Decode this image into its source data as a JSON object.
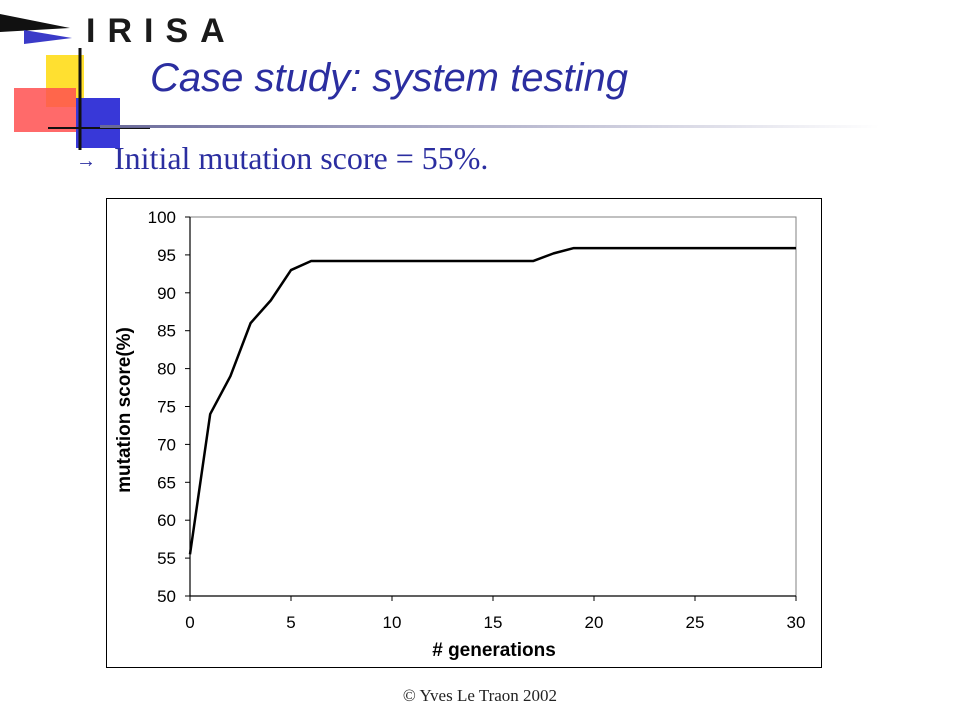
{
  "header": {
    "logo_text": "IRISA",
    "title": "Case study: system testing"
  },
  "bullet": {
    "icon": "arrow-right-icon",
    "text": "Initial mutation score = 55%."
  },
  "chart_data": {
    "type": "line",
    "xlabel": "# generations",
    "ylabel": "mutation score(%)",
    "xlim": [
      0,
      30
    ],
    "ylim": [
      50,
      100
    ],
    "xticks": [
      0,
      5,
      10,
      15,
      20,
      25,
      30
    ],
    "yticks": [
      50,
      55,
      60,
      65,
      70,
      75,
      80,
      85,
      90,
      95,
      100
    ],
    "grid": false,
    "legend": "none",
    "series": [
      {
        "x": [
          0,
          1,
          2,
          3,
          4,
          5,
          6,
          7,
          8,
          9,
          10,
          11,
          12,
          13,
          14,
          15,
          16,
          17,
          18,
          19,
          20,
          21,
          22,
          23,
          24,
          25,
          26,
          27,
          28,
          29,
          30
        ],
        "y": [
          55.5,
          74,
          79,
          86,
          89,
          93,
          94.2,
          94.2,
          94.2,
          94.2,
          94.2,
          94.2,
          94.2,
          94.2,
          94.2,
          94.2,
          94.2,
          94.2,
          95.2,
          95.9,
          95.9,
          95.9,
          95.9,
          95.9,
          95.9,
          95.9,
          95.9,
          95.9,
          95.9,
          95.9,
          95.9
        ]
      }
    ]
  },
  "footer": {
    "copyright": "© Yves Le Traon 2002"
  }
}
